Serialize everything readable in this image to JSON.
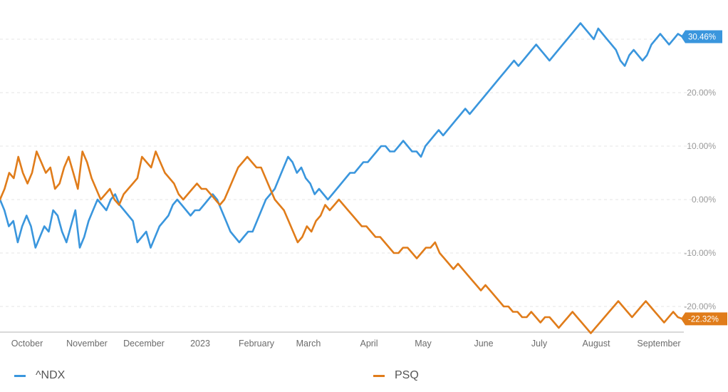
{
  "chart_data": {
    "type": "line",
    "title": "",
    "xlabel": "",
    "ylabel": "",
    "ylim": [
      -25.5,
      34.5
    ],
    "x_tick_labels": [
      "October",
      "November",
      "December",
      "2023",
      "February",
      "March",
      "April",
      "May",
      "June",
      "July",
      "August",
      "September"
    ],
    "y_tick_labels": [
      "20.00%",
      "10.00%",
      "0.00%",
      "-10.00%",
      "-20.00%"
    ],
    "y_tick_values": [
      20,
      10,
      0,
      -10,
      -20
    ],
    "grid": true,
    "legend_position": "bottom",
    "series": [
      {
        "name": "^NDX",
        "color": "#3a96dd",
        "end_label": "30.46%",
        "values": [
          0,
          -2,
          -5,
          -4,
          -8,
          -5,
          -3,
          -5,
          -9,
          -7,
          -5,
          -6,
          -2,
          -3,
          -6,
          -8,
          -5,
          -2,
          -9,
          -7,
          -4,
          -2,
          0,
          -1,
          -2,
          0,
          1,
          -1,
          -2,
          -3,
          -4,
          -8,
          -7,
          -6,
          -9,
          -7,
          -5,
          -4,
          -3,
          -1,
          0,
          -1,
          -2,
          -3,
          -2,
          -2,
          -1,
          0,
          1,
          0,
          -2,
          -4,
          -6,
          -7,
          -8,
          -7,
          -6,
          -6,
          -4,
          -2,
          0,
          1,
          2,
          4,
          6,
          8,
          7,
          5,
          6,
          4,
          3,
          1,
          2,
          1,
          0,
          1,
          2,
          3,
          4,
          5,
          5,
          6,
          7,
          7,
          8,
          9,
          10,
          10,
          9,
          9,
          10,
          11,
          10,
          9,
          9,
          8,
          10,
          11,
          12,
          13,
          12,
          13,
          14,
          15,
          16,
          17,
          16,
          17,
          18,
          19,
          20,
          21,
          22,
          23,
          24,
          25,
          26,
          25,
          26,
          27,
          28,
          29,
          28,
          27,
          26,
          27,
          28,
          29,
          30,
          31,
          32,
          33,
          32,
          31,
          30,
          32,
          31,
          30,
          29,
          28,
          26,
          25,
          27,
          28,
          27,
          26,
          27,
          29,
          30,
          31,
          30,
          29,
          30,
          31,
          30.46
        ]
      },
      {
        "name": "PSQ",
        "color": "#e07c1a",
        "end_label": "-22.32%",
        "values": [
          0,
          2,
          5,
          4,
          8,
          5,
          3,
          5,
          9,
          7,
          5,
          6,
          2,
          3,
          6,
          8,
          5,
          2,
          9,
          7,
          4,
          2,
          0,
          1,
          2,
          0,
          -1,
          1,
          2,
          3,
          4,
          8,
          7,
          6,
          9,
          7,
          5,
          4,
          3,
          1,
          0,
          1,
          2,
          3,
          2,
          2,
          1,
          0,
          -1,
          0,
          2,
          4,
          6,
          7,
          8,
          7,
          6,
          6,
          4,
          2,
          0,
          -1,
          -2,
          -4,
          -6,
          -8,
          -7,
          -5,
          -6,
          -4,
          -3,
          -1,
          -2,
          -1,
          0,
          -1,
          -2,
          -3,
          -4,
          -5,
          -5,
          -6,
          -7,
          -7,
          -8,
          -9,
          -10,
          -10,
          -9,
          -9,
          -10,
          -11,
          -10,
          -9,
          -9,
          -8,
          -10,
          -11,
          -12,
          -13,
          -12,
          -13,
          -14,
          -15,
          -16,
          -17,
          -16,
          -17,
          -18,
          -19,
          -20,
          -20,
          -21,
          -21,
          -22,
          -22,
          -21,
          -22,
          -23,
          -22,
          -22,
          -23,
          -24,
          -23,
          -22,
          -21,
          -22,
          -23,
          -24,
          -25,
          -24,
          -23,
          -22,
          -21,
          -20,
          -19,
          -20,
          -21,
          -22,
          -21,
          -20,
          -19,
          -20,
          -21,
          -22,
          -23,
          -22,
          -21,
          -22,
          -22.32
        ]
      }
    ]
  }
}
